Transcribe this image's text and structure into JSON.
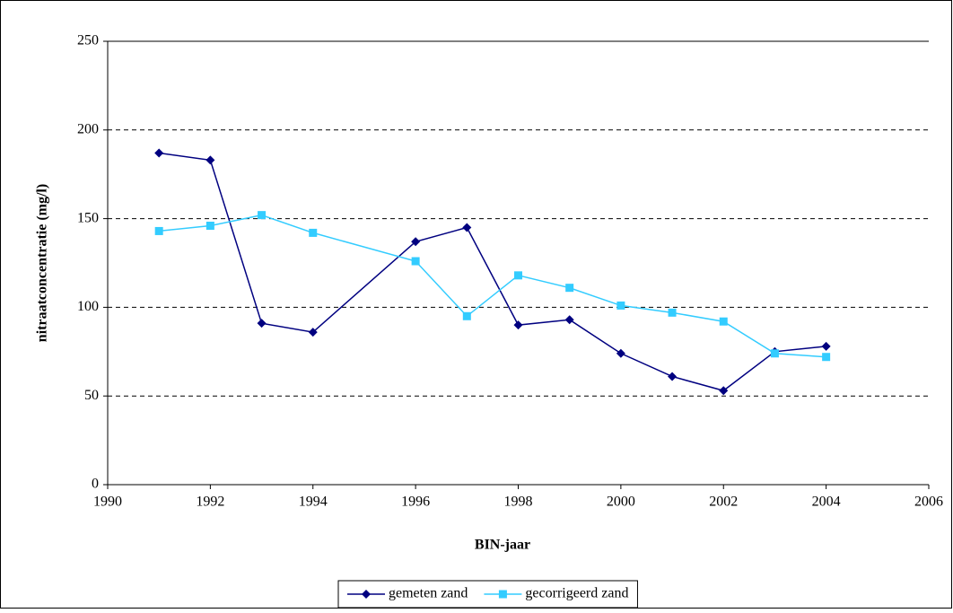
{
  "chart_data": {
    "type": "line",
    "x_label": "BIN-jaar",
    "y_label": "nitraatconcentratie (mg/l)",
    "x": [
      1991,
      1992,
      1993,
      1994,
      1996,
      1997,
      1998,
      1999,
      2000,
      2001,
      2002,
      2003,
      2004
    ],
    "series": [
      {
        "name": "gemeten zand",
        "color": "#000080",
        "marker": "diamond",
        "values": [
          187,
          183,
          91,
          86,
          137,
          145,
          90,
          93,
          74,
          61,
          53,
          75,
          78
        ]
      },
      {
        "name": "gecorrigeerd zand",
        "color": "#33ccff",
        "marker": "square",
        "values": [
          143,
          146,
          152,
          142,
          126,
          95,
          118,
          111,
          101,
          97,
          92,
          74,
          72
        ]
      }
    ],
    "xlim": [
      1990,
      2006
    ],
    "xticks": [
      1990,
      1992,
      1994,
      1996,
      1998,
      2000,
      2002,
      2004,
      2006
    ],
    "ylim": [
      0,
      250
    ],
    "yticks": [
      0,
      50,
      100,
      150,
      200,
      250
    ],
    "grid": true,
    "legend": "bottom"
  }
}
